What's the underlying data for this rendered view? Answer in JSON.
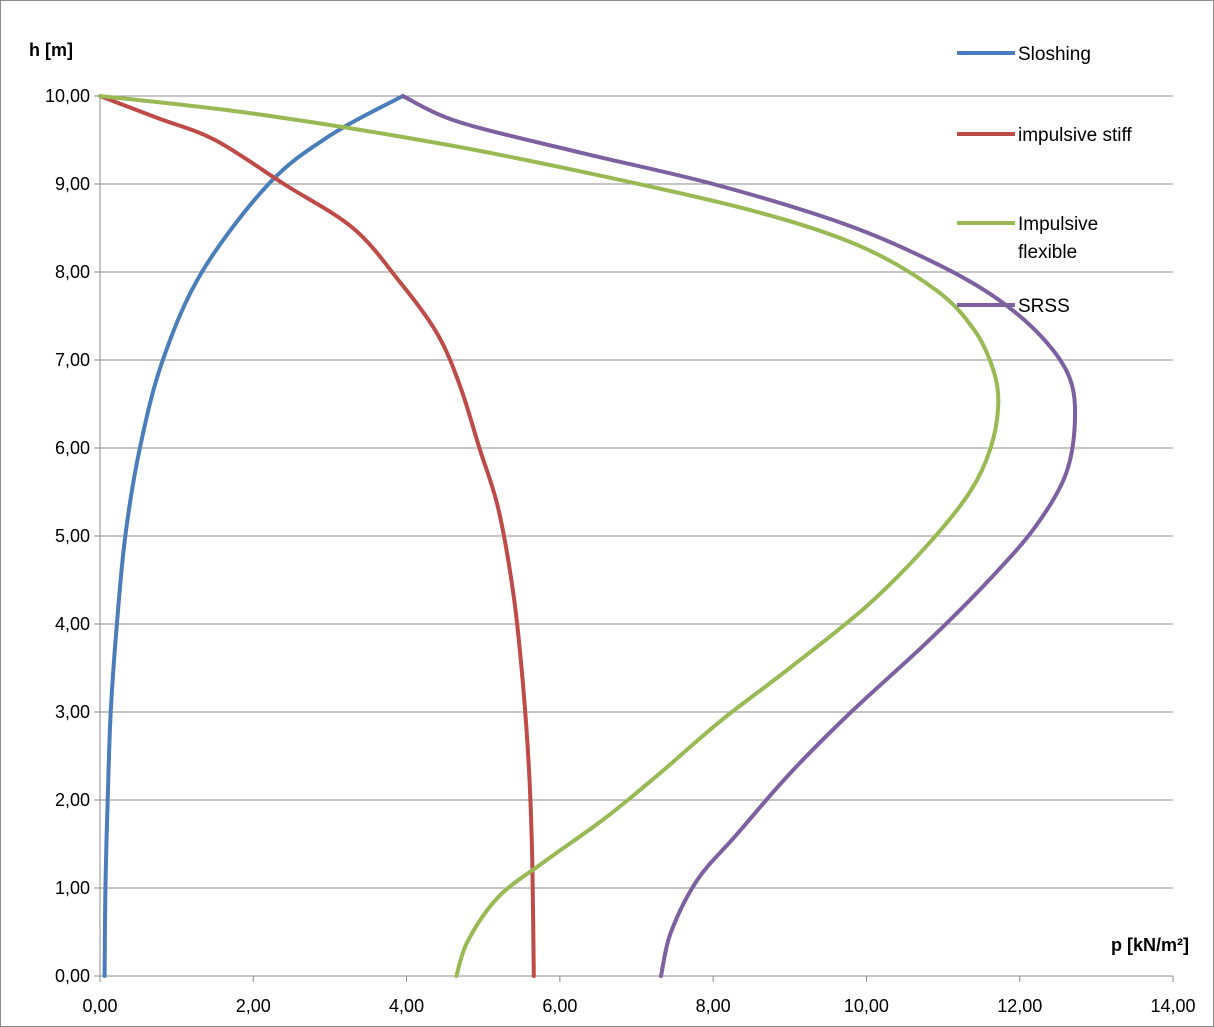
{
  "chart_data": {
    "type": "line",
    "xlabel": "p [kN/m²]",
    "ylabel": "h [m]",
    "xlim": [
      0,
      14
    ],
    "ylim": [
      0,
      10
    ],
    "x_ticks": [
      "0,00",
      "2,00",
      "4,00",
      "6,00",
      "8,00",
      "10,00",
      "12,00",
      "14,00"
    ],
    "y_ticks": [
      "0,00",
      "1,00",
      "2,00",
      "3,00",
      "4,00",
      "5,00",
      "6,00",
      "7,00",
      "8,00",
      "9,00",
      "10,00"
    ],
    "grid": "horizontal",
    "legend_position": "top-right",
    "series": [
      {
        "name": "Sloshing",
        "color": "#4a7ebb",
        "points": [
          [
            0.06,
            0
          ],
          [
            0.07,
            1
          ],
          [
            0.1,
            2
          ],
          [
            0.14,
            3
          ],
          [
            0.22,
            4
          ],
          [
            0.33,
            5
          ],
          [
            0.52,
            6
          ],
          [
            0.82,
            7
          ],
          [
            1.33,
            8
          ],
          [
            2.2,
            9
          ],
          [
            3.0,
            9.55
          ],
          [
            3.95,
            10
          ]
        ]
      },
      {
        "name": "impulsive stiff",
        "color": "#be4b48",
        "points": [
          [
            0,
            10
          ],
          [
            0.75,
            9.75
          ],
          [
            1.5,
            9.5
          ],
          [
            2.4,
            9.0
          ],
          [
            3.3,
            8.5
          ],
          [
            3.9,
            7.9
          ],
          [
            4.4,
            7.3
          ],
          [
            4.7,
            6.7
          ],
          [
            4.95,
            6.0
          ],
          [
            5.2,
            5.3
          ],
          [
            5.4,
            4.3
          ],
          [
            5.52,
            3.3
          ],
          [
            5.6,
            2.3
          ],
          [
            5.64,
            1.3
          ],
          [
            5.66,
            0
          ]
        ]
      },
      {
        "name": "Impulsive\nflexible",
        "color": "#98b954",
        "points": [
          [
            0,
            10
          ],
          [
            2.0,
            9.8
          ],
          [
            4.5,
            9.45
          ],
          [
            6.5,
            9.1
          ],
          [
            8.5,
            8.7
          ],
          [
            9.9,
            8.3
          ],
          [
            10.9,
            7.8
          ],
          [
            11.4,
            7.35
          ],
          [
            11.65,
            6.9
          ],
          [
            11.72,
            6.5
          ],
          [
            11.62,
            6.0
          ],
          [
            11.35,
            5.5
          ],
          [
            10.8,
            4.9
          ],
          [
            10.0,
            4.2
          ],
          [
            9.0,
            3.5
          ],
          [
            8.1,
            2.9
          ],
          [
            7.3,
            2.3
          ],
          [
            6.6,
            1.8
          ],
          [
            5.8,
            1.3
          ],
          [
            5.2,
            0.9
          ],
          [
            4.8,
            0.4
          ],
          [
            4.65,
            0
          ]
        ]
      },
      {
        "name": "SRSS",
        "color": "#7d60a0",
        "points": [
          [
            3.95,
            10
          ],
          [
            4.7,
            9.7
          ],
          [
            6.3,
            9.35
          ],
          [
            8.0,
            9.0
          ],
          [
            9.7,
            8.55
          ],
          [
            10.9,
            8.1
          ],
          [
            11.7,
            7.7
          ],
          [
            12.3,
            7.25
          ],
          [
            12.65,
            6.8
          ],
          [
            12.72,
            6.3
          ],
          [
            12.6,
            5.7
          ],
          [
            12.2,
            5.1
          ],
          [
            11.6,
            4.5
          ],
          [
            10.8,
            3.8
          ],
          [
            9.8,
            3.0
          ],
          [
            9.0,
            2.3
          ],
          [
            8.3,
            1.6
          ],
          [
            7.8,
            1.1
          ],
          [
            7.45,
            0.5
          ],
          [
            7.32,
            0
          ]
        ]
      }
    ]
  }
}
